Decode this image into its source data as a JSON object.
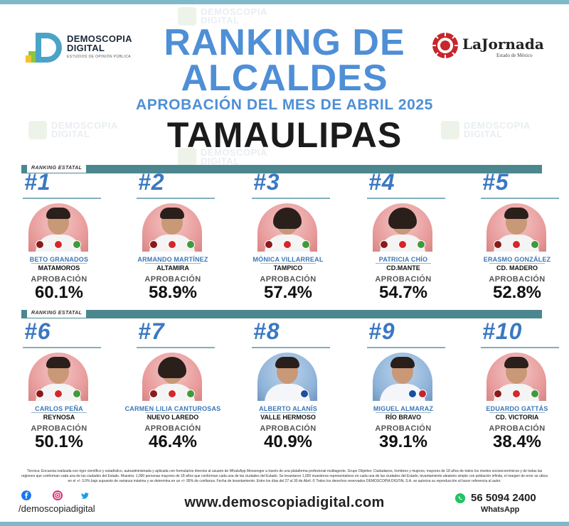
{
  "brand_left": {
    "line1": "DEMOSCOPIA",
    "line2": "DIGITAL",
    "tagline": "ESTUDIOS DE OPINIÓN PÚBLICA"
  },
  "brand_right": {
    "name": "LaJornada",
    "sub": "Estado de México"
  },
  "watermark": {
    "line1": "DEMOSCOPIA",
    "line2": "DIGITAL"
  },
  "header": {
    "title_line1": "RANKING DE",
    "title_line2": "ALCALDES",
    "subtitle": "APROBACIÓN DEL MES DE ABRIL 2025",
    "state": "TAMAULIPAS"
  },
  "section_label": "RANKING ESTATAL",
  "approval_label": "APROBACIÓN",
  "colors": {
    "title_blue": "#4e8fd6",
    "rank_blue": "#3a78c2",
    "bar_teal": "#4c8790",
    "morena": "#8b1a1a",
    "pt": "#d62828",
    "verde": "#3f9b3a",
    "pan": "#1b4fa0",
    "pri": "#c0272d"
  },
  "mayors": [
    {
      "rank": "#1",
      "name": "BETO GRANADOS",
      "city": "MATAMOROS",
      "approval": "60.1%",
      "parties": [
        "morena",
        "pt",
        "verde"
      ]
    },
    {
      "rank": "#2",
      "name": "ARMANDO MARTÍNEZ",
      "city": "ALTAMIRA",
      "approval": "58.9%",
      "parties": [
        "morena",
        "pt",
        "verde"
      ]
    },
    {
      "rank": "#3",
      "name": "MÓNICA VILLARREAL",
      "city": "TAMPICO",
      "approval": "57.4%",
      "parties": [
        "morena",
        "pt",
        "verde"
      ]
    },
    {
      "rank": "#4",
      "name": "PATRICIA CHÍO",
      "city": "CD.MANTE",
      "approval": "54.7%",
      "parties": [
        "morena",
        "pt",
        "verde"
      ]
    },
    {
      "rank": "#5",
      "name": "ERASMO GONZÁLEZ",
      "city": "CD. MADERO",
      "approval": "52.8%",
      "parties": [
        "morena",
        "pt",
        "verde"
      ]
    },
    {
      "rank": "#6",
      "name": "CARLOS PEÑA",
      "city": "REYNOSA",
      "approval": "50.1%",
      "parties": [
        "morena",
        "pt",
        "verde"
      ]
    },
    {
      "rank": "#7",
      "name": "CARMEN LILIA CANTUROSAS",
      "city": "NUEVO LAREDO",
      "approval": "46.4%",
      "parties": [
        "morena",
        "pt",
        "verde"
      ]
    },
    {
      "rank": "#8",
      "name": "ALBERTO ALANÍS",
      "city": "VALLE HERMOSO",
      "approval": "40.9%",
      "parties": [
        "pan"
      ]
    },
    {
      "rank": "#9",
      "name": "MIGUEL ALMARAZ",
      "city": "RÍO BRAVO",
      "approval": "39.1%",
      "parties": [
        "pan",
        "pri"
      ]
    },
    {
      "rank": "#10",
      "name": "EDUARDO GATTÁS",
      "city": "CD. VICTORIA",
      "approval": "38.4%",
      "parties": [
        "morena",
        "pt",
        "verde"
      ]
    }
  ],
  "footer": {
    "methodology": "Técnica: Encuesta realizada con rigor científico y estadístico, autoadministrada y aplicada con formularios directos al usuario de WhatsApp Messenger a través de una plataforma profesional multiagente. Grupo Objetivo: Ciudadanos, hombres y mujeres, mayores de 18 años de todos los niveles socioeconómicos y de todas las regiones que conforman cada una de las ciudades del Estado. Muestra: 1,000 personas mayores de 18 años que conforman cada una de las ciudades del Estado. Se levantaron 1,000 muestreos representativos en cada una de las ciudades del Estado, levantamiento aleatorio simple con población infinita, el margen de error se ubica en el +/- 3.0% bajo supuesto de varianza máxima y se determina en un +/- 95% de confianza. Fecha de levantamiento: Entre los días del 27 al 30 de Abril. © Todos los derechos reservados DEMOSCOPIA DIGITAL S.A. se autoriza su reproducción al hacer referencia al autor.",
    "handle": "/demoscopiadigital",
    "website": "www.demoscopiadigital.com",
    "phone": "56 5094 2400",
    "whatsapp": "WhatsApp",
    "social_icons": [
      "facebook-icon",
      "instagram-icon",
      "twitter-icon"
    ]
  }
}
